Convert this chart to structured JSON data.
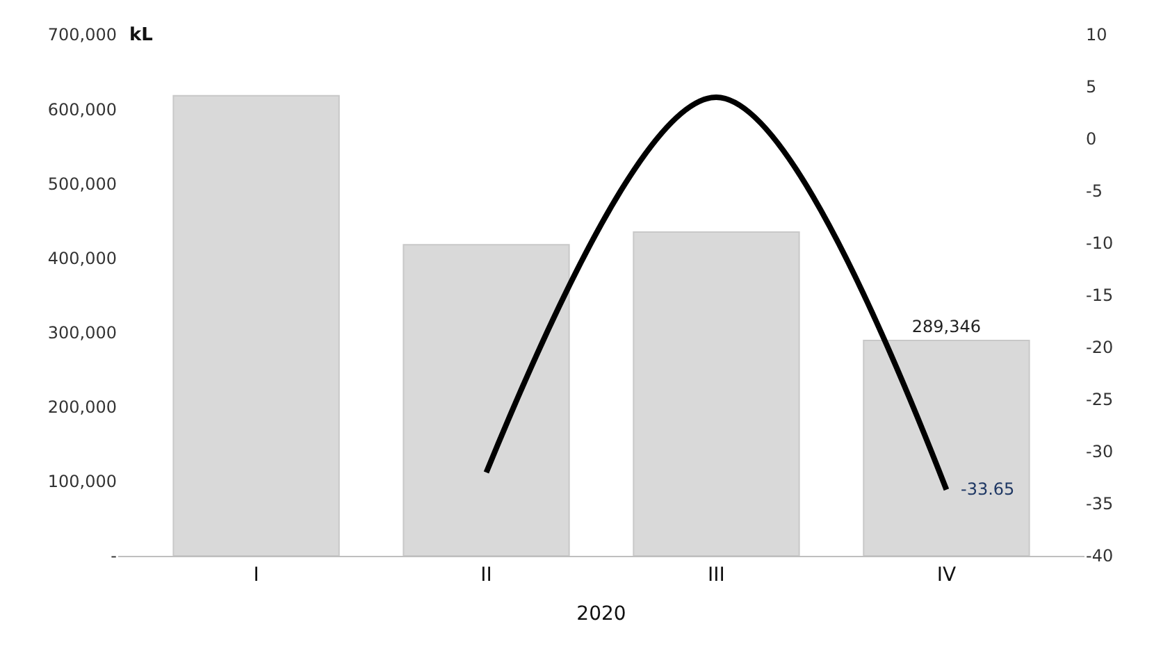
{
  "chart_data": {
    "type": "bar",
    "categories": [
      "I",
      "II",
      "III",
      "IV"
    ],
    "xlabel": "2020",
    "ylabel": "kL",
    "series": [
      {
        "color": "#d9d9d9",
        "values": [
          618000,
          418000,
          435000,
          289346
        ],
        "value_labels": [
          null,
          null,
          null,
          "289,346"
        ]
      },
      {
        "type": "line",
        "axis": "y2",
        "color": "#000000",
        "values": [
          null,
          -32,
          4,
          -33.65
        ],
        "value_labels": [
          null,
          null,
          null,
          "-33.65"
        ]
      }
    ],
    "ylim": [
      0,
      700000
    ],
    "yticks": [
      {
        "value": 0,
        "label": "-"
      },
      {
        "value": 100000,
        "label": "100,000"
      },
      {
        "value": 200000,
        "label": "200,000"
      },
      {
        "value": 300000,
        "label": "300,000"
      },
      {
        "value": 400000,
        "label": "400,000"
      },
      {
        "value": 500000,
        "label": "500,000"
      },
      {
        "value": 600000,
        "label": "600,000"
      },
      {
        "value": 700000,
        "label": "700,000"
      }
    ],
    "y2lim": [
      -40,
      10
    ],
    "y2ticks": [
      -40,
      -35,
      -30,
      -25,
      -20,
      -15,
      -10,
      -5,
      0,
      5,
      10
    ],
    "tick_labels": "xy"
  }
}
